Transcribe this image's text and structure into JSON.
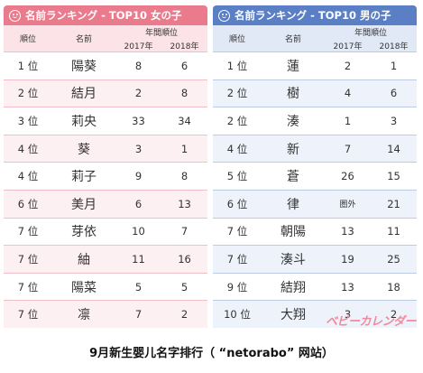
{
  "girls": {
    "title": "名前ランキング - TOP10 女の子",
    "col_rank": "順位",
    "col_name": "名前",
    "col_years": "年間順位",
    "year_a": "2017年",
    "year_b": "2018年",
    "rows": [
      {
        "rank": "1 位",
        "name": "陽葵",
        "y2017": "8",
        "y2018": "6"
      },
      {
        "rank": "2 位",
        "name": "結月",
        "y2017": "2",
        "y2018": "8"
      },
      {
        "rank": "3 位",
        "name": "莉央",
        "y2017": "33",
        "y2018": "34"
      },
      {
        "rank": "4 位",
        "name": "葵",
        "y2017": "3",
        "y2018": "1"
      },
      {
        "rank": "4 位",
        "name": "莉子",
        "y2017": "9",
        "y2018": "8"
      },
      {
        "rank": "6 位",
        "name": "美月",
        "y2017": "6",
        "y2018": "13"
      },
      {
        "rank": "7 位",
        "name": "芽依",
        "y2017": "10",
        "y2018": "7"
      },
      {
        "rank": "7 位",
        "name": "紬",
        "y2017": "11",
        "y2018": "16"
      },
      {
        "rank": "7 位",
        "name": "陽菜",
        "y2017": "5",
        "y2018": "5"
      },
      {
        "rank": "7 位",
        "name": "凛",
        "y2017": "7",
        "y2018": "2"
      }
    ]
  },
  "boys": {
    "title": "名前ランキング - TOP10 男の子",
    "col_rank": "順位",
    "col_name": "名前",
    "col_years": "年間順位",
    "year_a": "2017年",
    "year_b": "2018年",
    "rows": [
      {
        "rank": "1 位",
        "name": "蓮",
        "y2017": "2",
        "y2018": "1"
      },
      {
        "rank": "2 位",
        "name": "樹",
        "y2017": "4",
        "y2018": "6"
      },
      {
        "rank": "2 位",
        "name": "湊",
        "y2017": "1",
        "y2018": "3"
      },
      {
        "rank": "4 位",
        "name": "新",
        "y2017": "7",
        "y2018": "14"
      },
      {
        "rank": "5 位",
        "name": "蒼",
        "y2017": "26",
        "y2018": "15"
      },
      {
        "rank": "6 位",
        "name": "律",
        "y2017": "圏外",
        "y2018": "21"
      },
      {
        "rank": "7 位",
        "name": "朝陽",
        "y2017": "13",
        "y2018": "11"
      },
      {
        "rank": "7 位",
        "name": "湊斗",
        "y2017": "19",
        "y2018": "25"
      },
      {
        "rank": "9 位",
        "name": "結翔",
        "y2017": "13",
        "y2018": "18"
      },
      {
        "rank": "10 位",
        "name": "大翔",
        "y2017": "3",
        "y2018": "2"
      }
    ]
  },
  "brand": "ベビーカレンダー",
  "caption": "9月新生婴儿名字排行（ “netorabo” 网站）",
  "colors": {
    "girls_accent": "#e97b8c",
    "boys_accent": "#5b7fc4"
  }
}
